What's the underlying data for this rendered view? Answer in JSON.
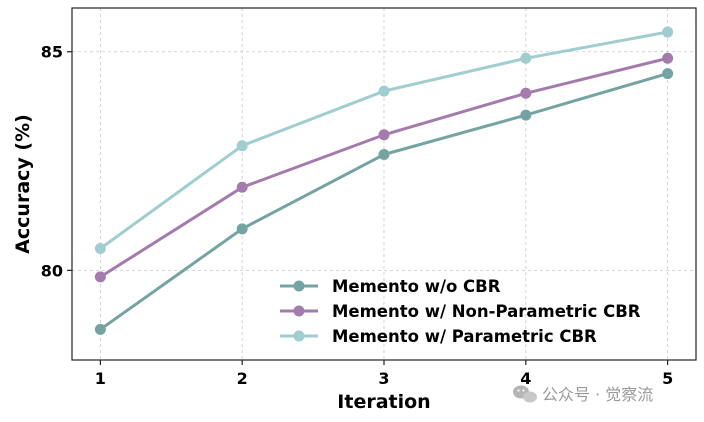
{
  "chart_data": {
    "type": "line",
    "x": [
      1,
      2,
      3,
      4,
      5
    ],
    "xlabel": "Iteration",
    "ylabel": "Accuracy (%)",
    "xlim": [
      0.8,
      5.2
    ],
    "ylim": [
      77.95,
      86.0
    ],
    "xticks": [
      "1",
      "2",
      "3",
      "4",
      "5"
    ],
    "yticks": [
      "80",
      "85"
    ],
    "grid": true,
    "legend_position": "lower-right",
    "series": [
      {
        "name": "Memento w/o CBR",
        "color": "#74a4a1",
        "values": [
          78.65,
          80.95,
          82.65,
          83.55,
          84.5
        ]
      },
      {
        "name": "Memento w/ Non-Parametric CBR",
        "color": "#a37cad",
        "values": [
          79.85,
          81.9,
          83.1,
          84.05,
          84.85
        ]
      },
      {
        "name": "Memento w/ Parametric CBR",
        "color": "#9fcdd0",
        "values": [
          80.5,
          82.85,
          84.1,
          84.85,
          85.45
        ]
      }
    ]
  },
  "watermark": {
    "text": "公众号 · 觉察流",
    "icon": "wechat-icon"
  }
}
